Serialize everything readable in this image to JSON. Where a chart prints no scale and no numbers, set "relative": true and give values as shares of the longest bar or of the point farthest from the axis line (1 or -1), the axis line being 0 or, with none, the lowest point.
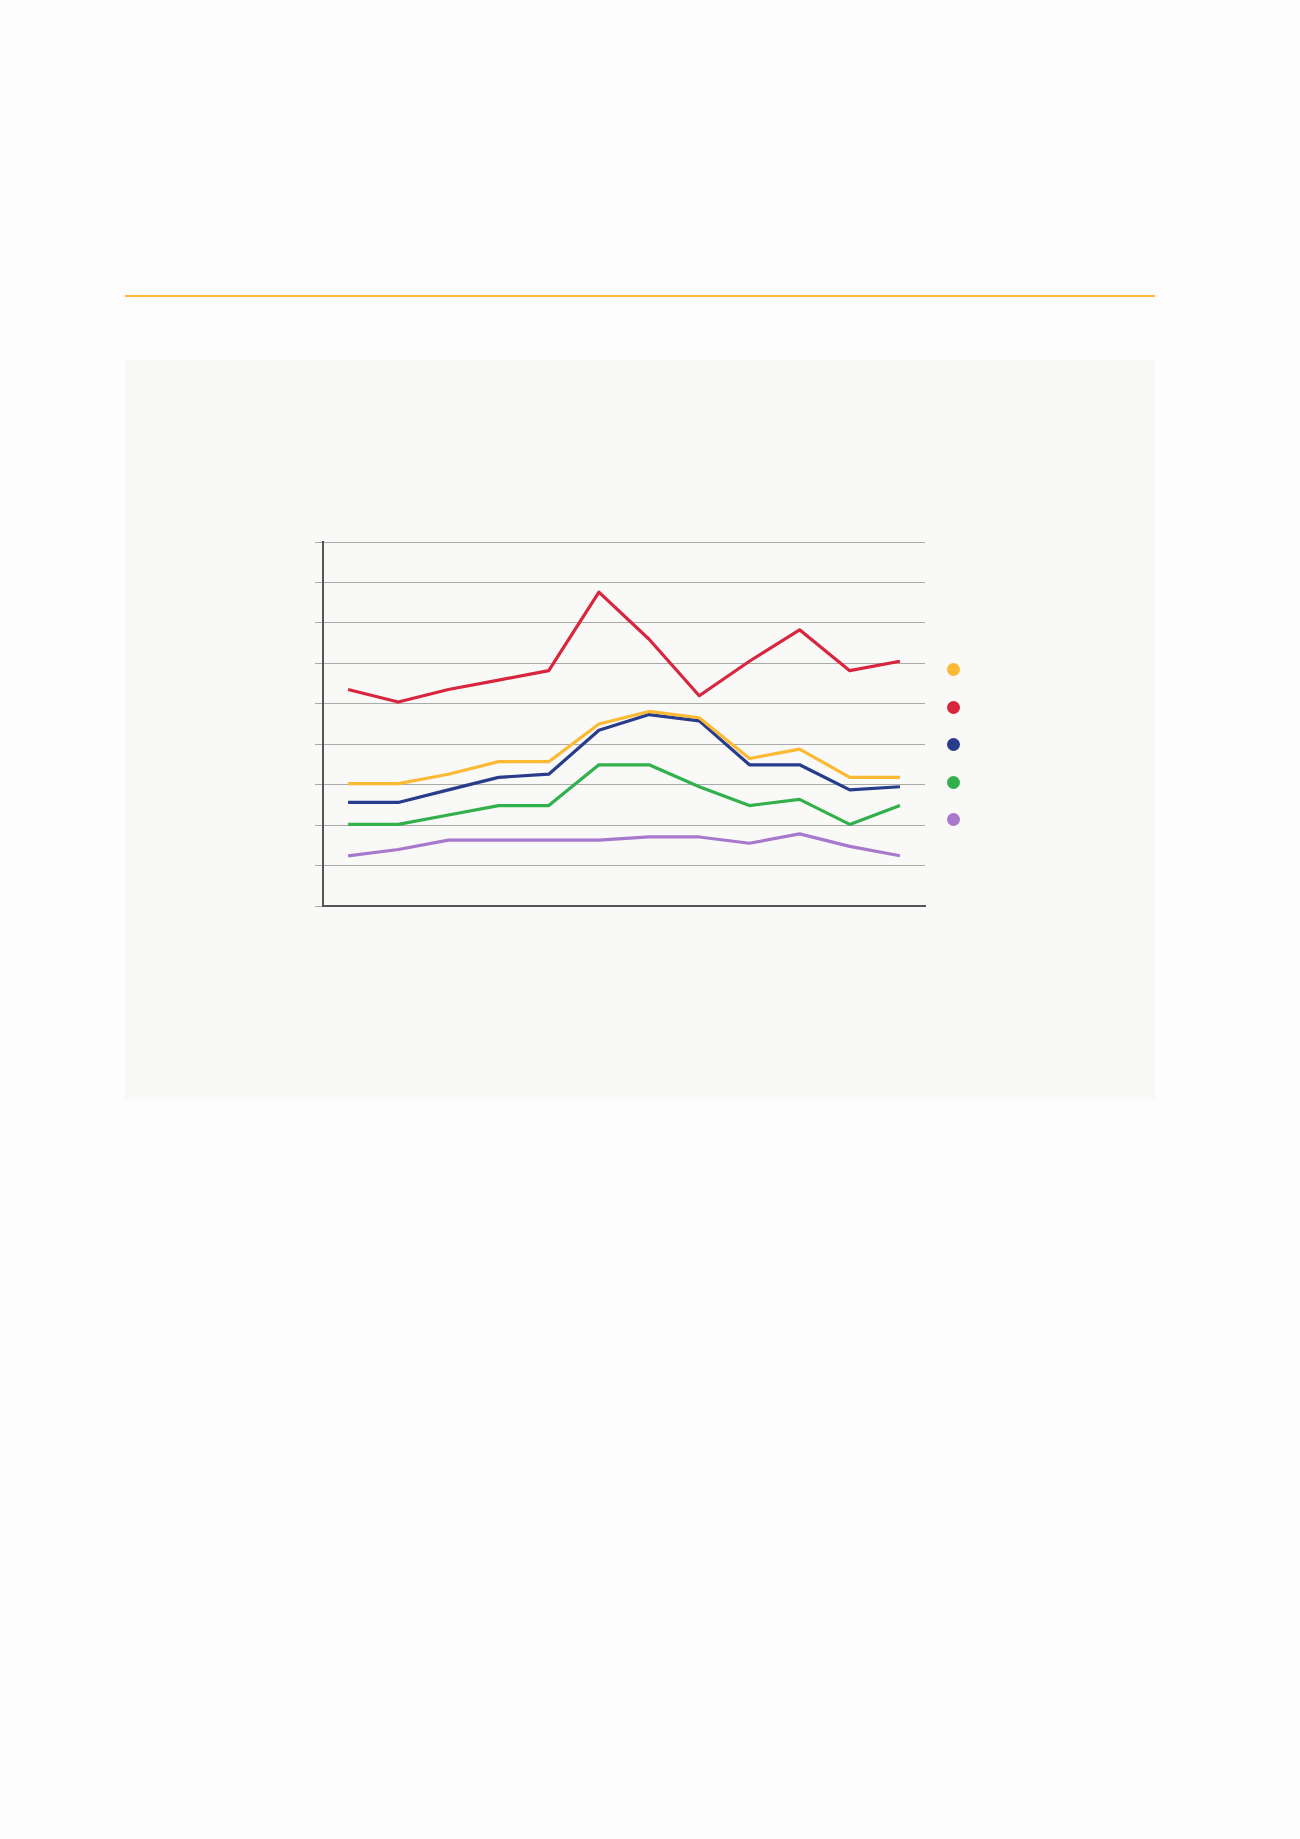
{
  "chart_data": {
    "type": "line",
    "relative": true,
    "grid": "y",
    "marker": "none",
    "line_style": "solid",
    "categories": [
      null,
      null,
      null,
      null,
      null,
      null,
      null,
      null,
      null,
      null,
      null,
      null
    ],
    "series": [
      {
        "color": "#fbb934",
        "values": [
          0.39,
          0.39,
          0.42,
          0.46,
          0.46,
          0.58,
          0.62,
          0.6,
          0.47,
          0.5,
          0.41,
          0.41
        ]
      },
      {
        "color": "#d7263d",
        "values": [
          0.69,
          0.65,
          0.69,
          0.72,
          0.75,
          1.0,
          0.85,
          0.67,
          0.78,
          0.88,
          0.75,
          0.78
        ]
      },
      {
        "color": "#283c8c",
        "values": [
          0.33,
          0.33,
          0.37,
          0.41,
          0.42,
          0.56,
          0.61,
          0.59,
          0.45,
          0.45,
          0.37,
          0.38
        ]
      },
      {
        "color": "#32b04c",
        "values": [
          0.26,
          0.26,
          0.29,
          0.32,
          0.32,
          0.45,
          0.45,
          0.38,
          0.32,
          0.34,
          0.26,
          0.32
        ]
      },
      {
        "color": "#a878cc",
        "values": [
          0.16,
          0.18,
          0.21,
          0.21,
          0.21,
          0.21,
          0.22,
          0.22,
          0.2,
          0.23,
          0.19,
          0.16
        ]
      }
    ]
  }
}
